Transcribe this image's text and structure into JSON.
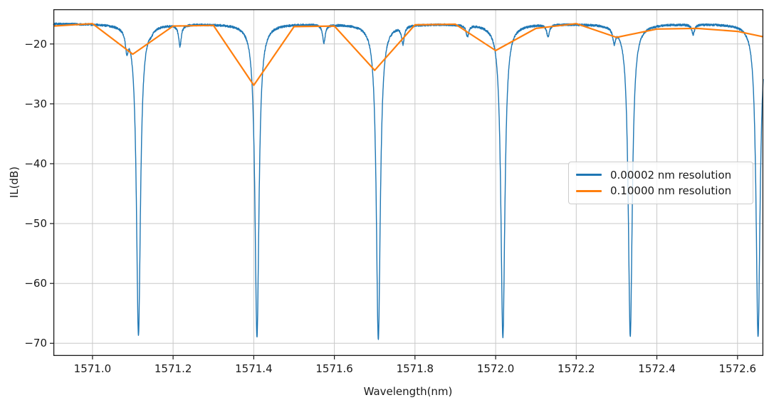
{
  "figure": {
    "background": "#ffffff"
  },
  "colors": {
    "grid": "#c9c9c9",
    "spine": "#1a1a1a",
    "tick": "#1a1a1a",
    "text": "#1a1a1a",
    "legend_border": "#cccccc",
    "legend_background": "rgba(255,255,255,0.8)"
  },
  "chart_data": {
    "type": "line",
    "title": "",
    "xlabel": "Wavelength(nm)",
    "ylabel": "IL(dB)",
    "xlim": [
      1570.903,
      1572.664
    ],
    "ylim": [
      -72.1,
      -14.2
    ],
    "grid": true,
    "xticks": [
      1571.0,
      1571.2,
      1571.4,
      1571.6,
      1571.8,
      1572.0,
      1572.2,
      1572.4,
      1572.6
    ],
    "xtick_labels": [
      "1571.0",
      "1571.2",
      "1571.4",
      "1571.6",
      "1571.8",
      "1572.0",
      "1572.2",
      "1572.4",
      "1572.6"
    ],
    "yticks": [
      -20,
      -30,
      -40,
      -50,
      -60,
      -70
    ],
    "ytick_labels": [
      "−20",
      "−30",
      "−40",
      "−50",
      "−60",
      "−70"
    ],
    "legend": {
      "position": "right",
      "border_radius": 4
    },
    "series": [
      {
        "name": "0.00002 nm resolution",
        "color": "#1f77b4",
        "line_width": 1.4,
        "kind": "model",
        "model": {
          "baseline_db": -16.6,
          "noise_db": 0.18,
          "noise_seed": 12345,
          "samples": 4400,
          "main_dip_width_nm": 0.006,
          "side_dip_width_nm": 0.004,
          "main_dips": [
            {
              "center_nm": 1571.114,
              "min_db": -68.6
            },
            {
              "center_nm": 1571.408,
              "min_db": -68.9
            },
            {
              "center_nm": 1571.709,
              "min_db": -69.3
            },
            {
              "center_nm": 1572.018,
              "min_db": -69.0
            },
            {
              "center_nm": 1572.334,
              "min_db": -68.8
            },
            {
              "center_nm": 1572.651,
              "min_db": -68.9
            }
          ],
          "side_dips": [
            {
              "center_nm": 1571.085,
              "min_db": -21.9
            },
            {
              "center_nm": 1571.146,
              "min_db": -18.9
            },
            {
              "center_nm": 1571.217,
              "min_db": -20.4
            },
            {
              "center_nm": 1571.574,
              "min_db": -19.8
            },
            {
              "center_nm": 1571.77,
              "min_db": -20.1
            },
            {
              "center_nm": 1571.93,
              "min_db": -18.8
            },
            {
              "center_nm": 1572.13,
              "min_db": -18.8
            },
            {
              "center_nm": 1572.294,
              "min_db": -20.1
            },
            {
              "center_nm": 1572.49,
              "min_db": -18.4
            }
          ]
        }
      },
      {
        "name": "0.10000 nm resolution",
        "color": "#ff7f0e",
        "line_width": 2.2,
        "kind": "points",
        "points": [
          [
            1570.903,
            -17.0
          ],
          [
            1571.0,
            -16.6
          ],
          [
            1571.1,
            -21.7
          ],
          [
            1571.2,
            -17.0
          ],
          [
            1571.3,
            -16.9
          ],
          [
            1571.4,
            -26.9
          ],
          [
            1571.5,
            -17.1
          ],
          [
            1571.6,
            -17.0
          ],
          [
            1571.7,
            -24.4
          ],
          [
            1571.8,
            -16.8
          ],
          [
            1571.9,
            -16.7
          ],
          [
            1572.0,
            -21.1
          ],
          [
            1572.1,
            -17.4
          ],
          [
            1572.2,
            -16.6
          ],
          [
            1572.3,
            -18.9
          ],
          [
            1572.4,
            -17.5
          ],
          [
            1572.5,
            -17.4
          ],
          [
            1572.6,
            -17.9
          ],
          [
            1572.664,
            -18.8
          ]
        ]
      }
    ]
  }
}
